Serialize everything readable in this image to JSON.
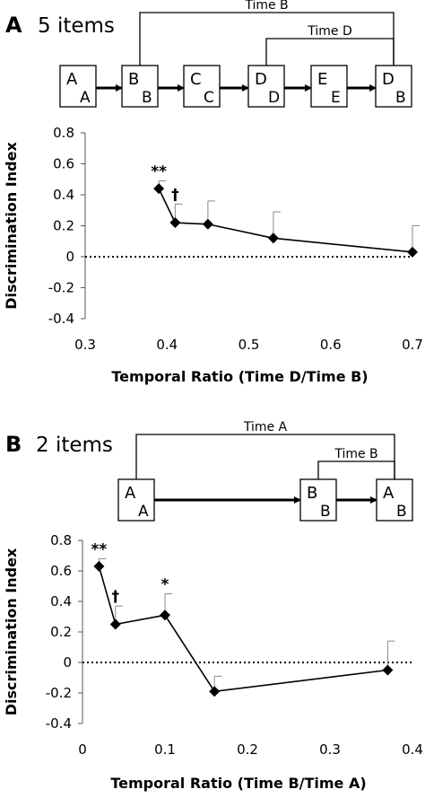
{
  "panels": [
    {
      "letter": "A",
      "subtitle": "5 items",
      "sequence": [
        {
          "main": "A",
          "sub": "A"
        },
        {
          "main": "B",
          "sub": "B"
        },
        {
          "main": "C",
          "sub": "C"
        },
        {
          "main": "D",
          "sub": "D"
        },
        {
          "main": "E",
          "sub": "E"
        },
        {
          "main": "D",
          "sub": "B"
        }
      ],
      "brackets": [
        {
          "label": "Time B",
          "from_item": 1,
          "to_item": 5
        },
        {
          "label": "Time D",
          "from_item": 3,
          "to_item": 5
        }
      ]
    },
    {
      "letter": "B",
      "subtitle": "2 items",
      "sequence": [
        {
          "main": "A",
          "sub": "A"
        },
        {
          "main": "B",
          "sub": "B"
        },
        {
          "main": "A",
          "sub": "B"
        }
      ],
      "brackets": [
        {
          "label": "Time A",
          "from_item": 0,
          "to_item": 2
        },
        {
          "label": "Time B",
          "from_item": 1,
          "to_item": 2
        }
      ]
    }
  ],
  "chart_data": [
    {
      "type": "line",
      "xlabel": "Temporal Ratio (Time D/Time B)",
      "ylabel": "Discrimination Index",
      "xlim": [
        0.3,
        0.7
      ],
      "ylim": [
        -0.4,
        0.8
      ],
      "xticks": [
        "0.3",
        "0.4",
        "0.5",
        "0.6",
        "0.7"
      ],
      "xtick_values": [
        0.3,
        0.4,
        0.5,
        0.6,
        0.7
      ],
      "yticks": [
        "0.8",
        "0.6",
        "0.4",
        "0.2",
        "0",
        "-0.2",
        "-0.4"
      ],
      "ytick_values": [
        0.8,
        0.6,
        0.4,
        0.2,
        0,
        -0.2,
        -0.4
      ],
      "reference_line": 0,
      "grid": false,
      "series": [
        {
          "points": [
            {
              "x": 0.39,
              "y": 0.44,
              "err": 0.05,
              "annotation": "**"
            },
            {
              "x": 0.41,
              "y": 0.22,
              "err": 0.12,
              "annotation": "†"
            },
            {
              "x": 0.45,
              "y": 0.21,
              "err": 0.15,
              "annotation": ""
            },
            {
              "x": 0.53,
              "y": 0.12,
              "err": 0.17,
              "annotation": ""
            },
            {
              "x": 0.7,
              "y": 0.03,
              "err": 0.17,
              "annotation": ""
            }
          ]
        }
      ]
    },
    {
      "type": "line",
      "xlabel": "Temporal Ratio (Time B/Time A)",
      "ylabel": "Discrimination Index",
      "xlim": [
        0,
        0.4
      ],
      "ylim": [
        -0.4,
        0.8
      ],
      "xticks": [
        "0",
        "0.1",
        "0.2",
        "0.3",
        "0.4"
      ],
      "xtick_values": [
        0,
        0.1,
        0.2,
        0.3,
        0.4
      ],
      "yticks": [
        "0.8",
        "0.6",
        "0.4",
        "0.2",
        "0",
        "-0.2",
        "-0.4"
      ],
      "ytick_values": [
        0.8,
        0.6,
        0.4,
        0.2,
        0,
        -0.2,
        -0.4
      ],
      "reference_line": 0,
      "grid": false,
      "series": [
        {
          "points": [
            {
              "x": 0.02,
              "y": 0.63,
              "err": 0.05,
              "annotation": "**"
            },
            {
              "x": 0.04,
              "y": 0.25,
              "err": 0.12,
              "annotation": "†"
            },
            {
              "x": 0.1,
              "y": 0.31,
              "err": 0.14,
              "annotation": "*"
            },
            {
              "x": 0.16,
              "y": -0.19,
              "err": 0.1,
              "annotation": ""
            },
            {
              "x": 0.37,
              "y": -0.05,
              "err": 0.19,
              "annotation": ""
            }
          ]
        }
      ]
    }
  ]
}
